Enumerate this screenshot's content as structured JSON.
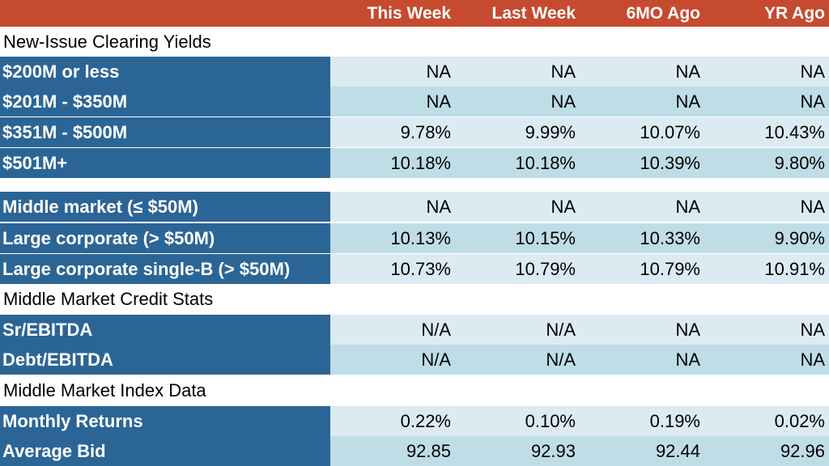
{
  "header": {
    "columns": [
      "This Week",
      "Last Week",
      "6MO Ago",
      "YR Ago"
    ]
  },
  "sections": {
    "new_issue": "New-Issue Clearing Yields",
    "credit_stats": "Middle Market Credit Stats",
    "index_data": "Middle Market Index Data"
  },
  "rows": [
    {
      "label": "$200M or less",
      "values": [
        "NA",
        "NA",
        "NA",
        "NA"
      ]
    },
    {
      "label": "$201M - $350M",
      "values": [
        "NA",
        "NA",
        "NA",
        "NA"
      ]
    },
    {
      "label": "$351M - $500M",
      "values": [
        "9.78%",
        "9.99%",
        "10.07%",
        "10.43%"
      ]
    },
    {
      "label": "$501M+",
      "values": [
        "10.18%",
        "10.18%",
        "10.39%",
        "9.80%"
      ]
    },
    {
      "label": "Middle market (≤ $50M)",
      "values": [
        "NA",
        "NA",
        "NA",
        "NA"
      ]
    },
    {
      "label": "Large corporate (> $50M)",
      "values": [
        "10.13%",
        "10.15%",
        "10.33%",
        "9.90%"
      ]
    },
    {
      "label": "Large corporate single-B (> $50M)",
      "values": [
        "10.73%",
        "10.79%",
        "10.79%",
        "10.91%"
      ]
    },
    {
      "label": "Sr/EBITDA",
      "values": [
        "N/A",
        "N/A",
        "NA",
        "NA"
      ]
    },
    {
      "label": "Debt/EBITDA",
      "values": [
        "N/A",
        "N/A",
        "NA",
        "NA"
      ]
    },
    {
      "label": "Monthly Returns",
      "values": [
        "0.22%",
        "0.10%",
        "0.19%",
        "0.02%"
      ]
    },
    {
      "label": "Average Bid",
      "values": [
        "92.85",
        "92.93",
        "92.44",
        "92.96"
      ]
    }
  ],
  "colors": {
    "header_bg": "#c64a2f",
    "label_bg": "#2b6596",
    "cell_light": "#dcebf2",
    "cell_dark": "#bfdde7"
  }
}
